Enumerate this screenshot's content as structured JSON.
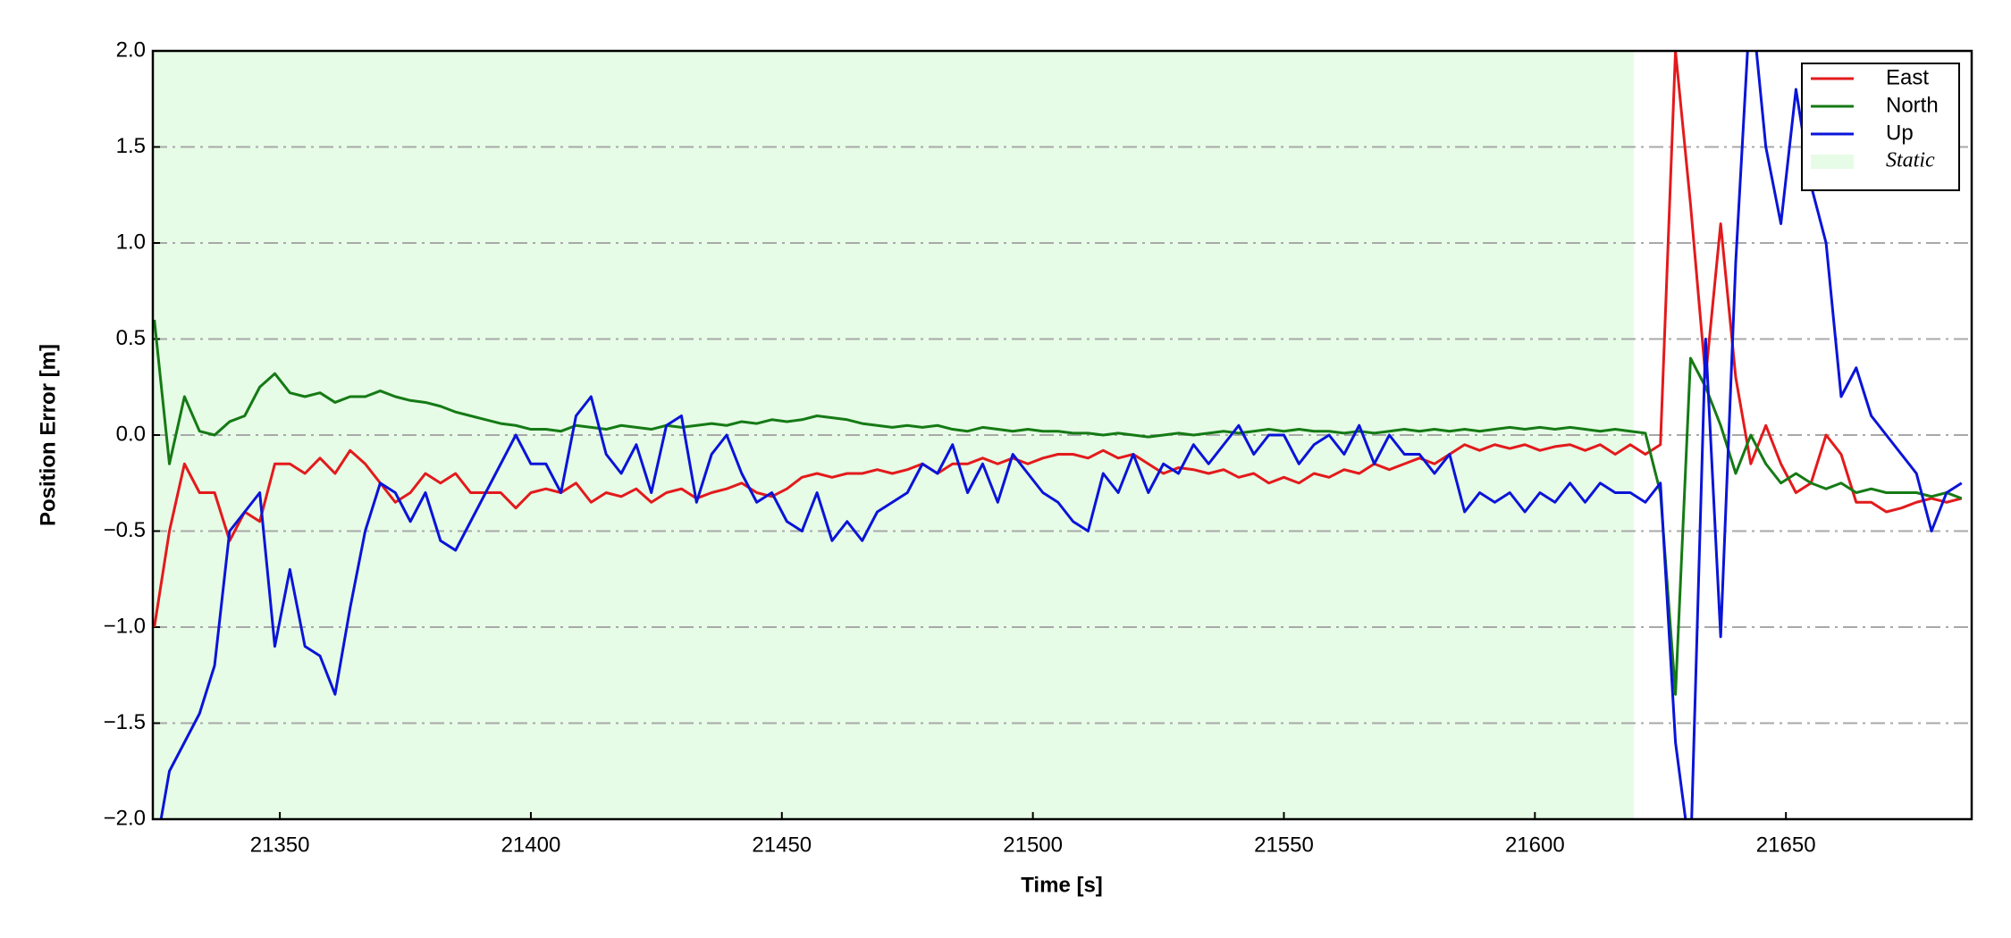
{
  "chart_data": {
    "type": "line",
    "xlabel": "Time [s]",
    "ylabel": "Position Error [m]",
    "xlim": [
      21324.7,
      21687
    ],
    "ylim": [
      -2,
      2
    ],
    "xticks": [
      21350,
      21400,
      21450,
      21500,
      21550,
      21600,
      21650
    ],
    "yticks": [
      {
        "value": -2,
        "label": "−2.0"
      },
      {
        "value": -1.5,
        "label": "−1.5"
      },
      {
        "value": -1,
        "label": "−1.0"
      },
      {
        "value": -0.5,
        "label": "−0.5"
      },
      {
        "value": 0,
        "label": "0.0"
      },
      {
        "value": 0.5,
        "label": "0.5"
      },
      {
        "value": 1,
        "label": "1.0"
      },
      {
        "value": 1.5,
        "label": "1.5"
      },
      {
        "value": 2,
        "label": "2.0"
      }
    ],
    "grid": true,
    "legend": "upper right",
    "shaded_regions": [
      {
        "name": "Static",
        "start": 21324.7,
        "end": 21619.7,
        "color": "#e6fce6"
      }
    ],
    "x": [
      21325,
      21328,
      21331,
      21334,
      21337,
      21340,
      21343,
      21346,
      21349,
      21352,
      21355,
      21358,
      21361,
      21364,
      21367,
      21370,
      21373,
      21376,
      21379,
      21382,
      21385,
      21388,
      21391,
      21394,
      21397,
      21400,
      21403,
      21406,
      21409,
      21412,
      21415,
      21418,
      21421,
      21424,
      21427,
      21430,
      21433,
      21436,
      21439,
      21442,
      21445,
      21448,
      21451,
      21454,
      21457,
      21460,
      21463,
      21466,
      21469,
      21472,
      21475,
      21478,
      21481,
      21484,
      21487,
      21490,
      21493,
      21496,
      21499,
      21502,
      21505,
      21508,
      21511,
      21514,
      21517,
      21520,
      21523,
      21526,
      21529,
      21532,
      21535,
      21538,
      21541,
      21544,
      21547,
      21550,
      21553,
      21556,
      21559,
      21562,
      21565,
      21568,
      21571,
      21574,
      21577,
      21580,
      21583,
      21586,
      21589,
      21592,
      21595,
      21598,
      21601,
      21604,
      21607,
      21610,
      21613,
      21616,
      21619,
      21622,
      21625,
      21628,
      21631,
      21634,
      21637,
      21640,
      21643,
      21646,
      21649,
      21652,
      21655,
      21658,
      21661,
      21664,
      21667,
      21670,
      21673,
      21676,
      21679,
      21682,
      21685
    ],
    "series": [
      {
        "name": "East",
        "color": "#e31a1c",
        "values": [
          -1.0,
          -0.5,
          -0.15,
          -0.3,
          -0.3,
          -0.55,
          -0.4,
          -0.45,
          -0.15,
          -0.15,
          -0.2,
          -0.12,
          -0.2,
          -0.08,
          -0.15,
          -0.25,
          -0.35,
          -0.3,
          -0.2,
          -0.25,
          -0.2,
          -0.3,
          -0.3,
          -0.3,
          -0.38,
          -0.3,
          -0.28,
          -0.3,
          -0.25,
          -0.35,
          -0.3,
          -0.32,
          -0.28,
          -0.35,
          -0.3,
          -0.28,
          -0.33,
          -0.3,
          -0.28,
          -0.25,
          -0.3,
          -0.32,
          -0.28,
          -0.22,
          -0.2,
          -0.22,
          -0.2,
          -0.2,
          -0.18,
          -0.2,
          -0.18,
          -0.15,
          -0.2,
          -0.15,
          -0.15,
          -0.12,
          -0.15,
          -0.12,
          -0.15,
          -0.12,
          -0.1,
          -0.1,
          -0.12,
          -0.08,
          -0.12,
          -0.1,
          -0.15,
          -0.2,
          -0.17,
          -0.18,
          -0.2,
          -0.18,
          -0.22,
          -0.2,
          -0.25,
          -0.22,
          -0.25,
          -0.2,
          -0.22,
          -0.18,
          -0.2,
          -0.15,
          -0.18,
          -0.15,
          -0.12,
          -0.15,
          -0.1,
          -0.05,
          -0.08,
          -0.05,
          -0.07,
          -0.05,
          -0.08,
          -0.06,
          -0.05,
          -0.08,
          -0.05,
          -0.1,
          -0.05,
          -0.1,
          -0.05,
          2.0,
          1.2,
          0.3,
          1.1,
          0.3,
          -0.15,
          0.05,
          -0.15,
          -0.3,
          -0.25,
          0.0,
          -0.1,
          -0.35,
          -0.35,
          -0.4,
          -0.38,
          -0.35,
          -0.33,
          -0.35,
          -0.33
        ]
      },
      {
        "name": "North",
        "color": "#157a15",
        "values": [
          0.6,
          -0.15,
          0.2,
          0.02,
          0.0,
          0.07,
          0.1,
          0.25,
          0.32,
          0.22,
          0.2,
          0.22,
          0.17,
          0.2,
          0.2,
          0.23,
          0.2,
          0.18,
          0.17,
          0.15,
          0.12,
          0.1,
          0.08,
          0.06,
          0.05,
          0.03,
          0.03,
          0.02,
          0.05,
          0.04,
          0.03,
          0.05,
          0.04,
          0.03,
          0.05,
          0.04,
          0.05,
          0.06,
          0.05,
          0.07,
          0.06,
          0.08,
          0.07,
          0.08,
          0.1,
          0.09,
          0.08,
          0.06,
          0.05,
          0.04,
          0.05,
          0.04,
          0.05,
          0.03,
          0.02,
          0.04,
          0.03,
          0.02,
          0.03,
          0.02,
          0.02,
          0.01,
          0.01,
          0.0,
          0.01,
          0.0,
          -0.01,
          0.0,
          0.01,
          0.0,
          0.01,
          0.02,
          0.01,
          0.02,
          0.03,
          0.02,
          0.03,
          0.02,
          0.02,
          0.01,
          0.02,
          0.01,
          0.02,
          0.03,
          0.02,
          0.03,
          0.02,
          0.03,
          0.02,
          0.03,
          0.04,
          0.03,
          0.04,
          0.03,
          0.04,
          0.03,
          0.02,
          0.03,
          0.02,
          0.01,
          -0.3,
          -1.35,
          0.4,
          0.25,
          0.05,
          -0.2,
          0.0,
          -0.15,
          -0.25,
          -0.2,
          -0.25,
          -0.28,
          -0.25,
          -0.3,
          -0.28,
          -0.3,
          -0.3,
          -0.3,
          -0.32,
          -0.3,
          -0.33
        ]
      },
      {
        "name": "Up",
        "color": "#0a14d8",
        "values": [
          -2.2,
          -1.75,
          -1.6,
          -1.45,
          -1.2,
          -0.5,
          -0.4,
          -0.3,
          -1.1,
          -0.7,
          -1.1,
          -1.15,
          -1.35,
          -0.9,
          -0.5,
          -0.25,
          -0.3,
          -0.45,
          -0.3,
          -0.55,
          -0.6,
          -0.45,
          -0.3,
          -0.15,
          0.0,
          -0.15,
          -0.15,
          -0.3,
          0.1,
          0.2,
          -0.1,
          -0.2,
          -0.05,
          -0.3,
          0.05,
          0.1,
          -0.35,
          -0.1,
          0.0,
          -0.2,
          -0.35,
          -0.3,
          -0.45,
          -0.5,
          -0.3,
          -0.55,
          -0.45,
          -0.55,
          -0.4,
          -0.35,
          -0.3,
          -0.15,
          -0.2,
          -0.05,
          -0.3,
          -0.15,
          -0.35,
          -0.1,
          -0.2,
          -0.3,
          -0.35,
          -0.45,
          -0.5,
          -0.2,
          -0.3,
          -0.1,
          -0.3,
          -0.15,
          -0.2,
          -0.05,
          -0.15,
          -0.05,
          0.05,
          -0.1,
          0.0,
          0.0,
          -0.15,
          -0.05,
          0.0,
          -0.1,
          0.05,
          -0.15,
          0.0,
          -0.1,
          -0.1,
          -0.2,
          -0.1,
          -0.4,
          -0.3,
          -0.35,
          -0.3,
          -0.4,
          -0.3,
          -0.35,
          -0.25,
          -0.35,
          -0.25,
          -0.3,
          -0.3,
          -0.35,
          -0.25,
          -1.6,
          -2.2,
          0.5,
          -1.05,
          0.9,
          2.3,
          1.5,
          1.1,
          1.8,
          1.3,
          1.0,
          0.2,
          0.35,
          0.1,
          0.0,
          -0.1,
          -0.2,
          -0.5,
          -0.3,
          -0.25
        ]
      }
    ]
  }
}
